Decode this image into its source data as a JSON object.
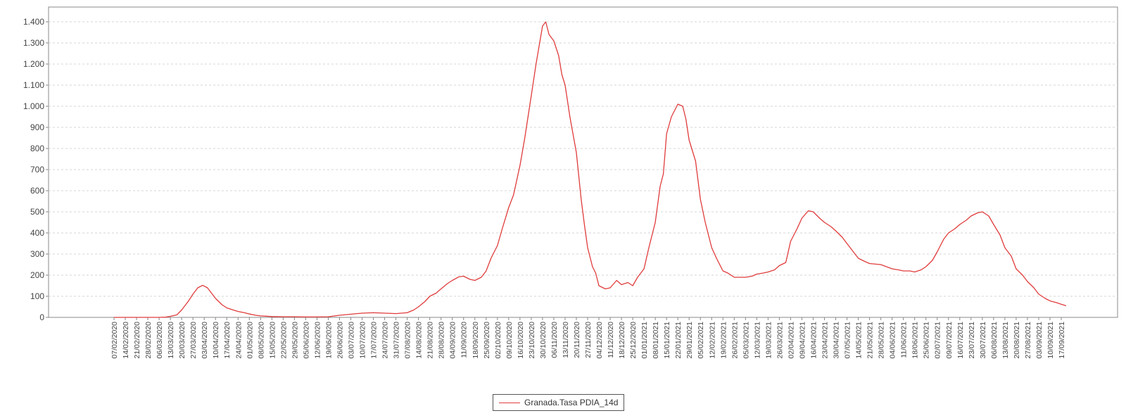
{
  "chart_data": {
    "type": "line",
    "title": "",
    "xlabel": "",
    "ylabel": "",
    "ylim": [
      0,
      1470
    ],
    "y_ticks": [
      0,
      100,
      200,
      300,
      400,
      500,
      600,
      700,
      800,
      900,
      1000,
      1100,
      1200,
      1300,
      1400
    ],
    "y_tick_labels": [
      "0",
      "100",
      "200",
      "300",
      "400",
      "500",
      "600",
      "700",
      "800",
      "900",
      "1.000",
      "1.100",
      "1.200",
      "1.300",
      "1.400"
    ],
    "x_tick_labels": [
      "07/02/2020",
      "14/02/2020",
      "21/02/2020",
      "28/02/2020",
      "06/03/2020",
      "13/03/2020",
      "20/03/2020",
      "27/03/2020",
      "03/04/2020",
      "10/04/2020",
      "17/04/2020",
      "24/04/2020",
      "01/05/2020",
      "08/05/2020",
      "15/05/2020",
      "22/05/2020",
      "29/05/2020",
      "05/06/2020",
      "12/06/2020",
      "19/06/2020",
      "26/06/2020",
      "03/07/2020",
      "10/07/2020",
      "17/07/2020",
      "24/07/2020",
      "31/07/2020",
      "07/08/2020",
      "14/08/2020",
      "21/08/2020",
      "28/08/2020",
      "04/09/2020",
      "11/09/2020",
      "18/09/2020",
      "25/09/2020",
      "02/10/2020",
      "09/10/2020",
      "16/10/2020",
      "23/10/2020",
      "30/10/2020",
      "06/11/2020",
      "13/11/2020",
      "20/11/2020",
      "27/11/2020",
      "04/12/2020",
      "11/12/2020",
      "18/12/2020",
      "25/12/2020",
      "01/01/2021",
      "08/01/2021",
      "15/01/2021",
      "22/01/2021",
      "29/01/2021",
      "05/02/2021",
      "12/02/2021",
      "19/02/2021",
      "26/02/2021",
      "05/03/2021",
      "12/03/2021",
      "19/03/2021",
      "26/03/2021",
      "02/04/2021",
      "09/04/2021",
      "16/04/2021",
      "23/04/2021",
      "30/04/2021",
      "07/05/2021",
      "14/05/2021",
      "21/05/2021",
      "28/05/2021",
      "04/06/2021",
      "11/06/2021",
      "18/06/2021",
      "25/06/2021",
      "02/07/2021",
      "09/07/2021",
      "16/07/2021",
      "23/07/2021",
      "30/07/2021",
      "06/08/2021",
      "13/08/2021",
      "20/08/2021",
      "27/08/2021",
      "03/09/2021",
      "10/09/2021",
      "17/09/2021"
    ],
    "grid": true,
    "legend_position": "bottom-center",
    "series": [
      {
        "name": "Granada.Tasa PDIA_14d",
        "color": "#e03c3c",
        "points": [
          [
            "07/02/2020",
            0
          ],
          [
            "14/02/2020",
            0
          ],
          [
            "21/02/2020",
            0
          ],
          [
            "28/02/2020",
            0
          ],
          [
            "06/03/2020",
            0
          ],
          [
            "10/03/2020",
            1
          ],
          [
            "13/03/2020",
            5
          ],
          [
            "17/03/2020",
            12
          ],
          [
            "20/03/2020",
            35
          ],
          [
            "24/03/2020",
            75
          ],
          [
            "27/03/2020",
            110
          ],
          [
            "30/03/2020",
            140
          ],
          [
            "02/04/2020",
            152
          ],
          [
            "05/04/2020",
            140
          ],
          [
            "08/04/2020",
            110
          ],
          [
            "10/04/2020",
            90
          ],
          [
            "14/04/2020",
            60
          ],
          [
            "17/04/2020",
            45
          ],
          [
            "21/04/2020",
            35
          ],
          [
            "24/04/2020",
            28
          ],
          [
            "28/04/2020",
            22
          ],
          [
            "01/05/2020",
            16
          ],
          [
            "05/05/2020",
            10
          ],
          [
            "08/05/2020",
            7
          ],
          [
            "15/05/2020",
            4
          ],
          [
            "22/05/2020",
            3
          ],
          [
            "29/05/2020",
            3
          ],
          [
            "05/06/2020",
            2
          ],
          [
            "12/06/2020",
            2
          ],
          [
            "19/06/2020",
            3
          ],
          [
            "26/06/2020",
            10
          ],
          [
            "03/07/2020",
            15
          ],
          [
            "10/07/2020",
            20
          ],
          [
            "17/07/2020",
            22
          ],
          [
            "24/07/2020",
            20
          ],
          [
            "31/07/2020",
            18
          ],
          [
            "07/08/2020",
            22
          ],
          [
            "11/08/2020",
            35
          ],
          [
            "14/08/2020",
            50
          ],
          [
            "18/08/2020",
            75
          ],
          [
            "21/08/2020",
            100
          ],
          [
            "25/08/2020",
            115
          ],
          [
            "28/08/2020",
            135
          ],
          [
            "01/09/2020",
            160
          ],
          [
            "04/09/2020",
            175
          ],
          [
            "08/09/2020",
            192
          ],
          [
            "11/09/2020",
            195
          ],
          [
            "15/09/2020",
            180
          ],
          [
            "18/09/2020",
            175
          ],
          [
            "22/09/2020",
            190
          ],
          [
            "25/09/2020",
            220
          ],
          [
            "28/09/2020",
            280
          ],
          [
            "02/10/2020",
            340
          ],
          [
            "05/10/2020",
            420
          ],
          [
            "09/10/2020",
            520
          ],
          [
            "12/10/2020",
            580
          ],
          [
            "16/10/2020",
            720
          ],
          [
            "19/10/2020",
            850
          ],
          [
            "23/10/2020",
            1050
          ],
          [
            "26/10/2020",
            1200
          ],
          [
            "30/10/2020",
            1380
          ],
          [
            "01/11/2020",
            1400
          ],
          [
            "03/11/2020",
            1340
          ],
          [
            "06/11/2020",
            1310
          ],
          [
            "09/11/2020",
            1240
          ],
          [
            "11/11/2020",
            1150
          ],
          [
            "13/11/2020",
            1100
          ],
          [
            "16/11/2020",
            950
          ],
          [
            "20/11/2020",
            780
          ],
          [
            "23/11/2020",
            560
          ],
          [
            "25/11/2020",
            440
          ],
          [
            "27/11/2020",
            330
          ],
          [
            "30/11/2020",
            240
          ],
          [
            "02/12/2020",
            210
          ],
          [
            "04/12/2020",
            150
          ],
          [
            "08/12/2020",
            135
          ],
          [
            "11/12/2020",
            140
          ],
          [
            "15/12/2020",
            175
          ],
          [
            "18/12/2020",
            155
          ],
          [
            "22/12/2020",
            165
          ],
          [
            "25/12/2020",
            150
          ],
          [
            "28/12/2020",
            190
          ],
          [
            "01/01/2021",
            230
          ],
          [
            "04/01/2021",
            330
          ],
          [
            "08/01/2021",
            450
          ],
          [
            "11/01/2021",
            620
          ],
          [
            "13/01/2021",
            680
          ],
          [
            "15/01/2021",
            870
          ],
          [
            "18/01/2021",
            950
          ],
          [
            "22/01/2021",
            1010
          ],
          [
            "25/01/2021",
            1000
          ],
          [
            "27/01/2021",
            940
          ],
          [
            "29/01/2021",
            840
          ],
          [
            "02/02/2021",
            740
          ],
          [
            "05/02/2021",
            560
          ],
          [
            "08/02/2021",
            450
          ],
          [
            "12/02/2021",
            330
          ],
          [
            "15/02/2021",
            280
          ],
          [
            "19/02/2021",
            220
          ],
          [
            "22/02/2021",
            210
          ],
          [
            "26/02/2021",
            190
          ],
          [
            "05/03/2021",
            190
          ],
          [
            "09/03/2021",
            195
          ],
          [
            "12/03/2021",
            205
          ],
          [
            "16/03/2021",
            210
          ],
          [
            "19/03/2021",
            215
          ],
          [
            "23/03/2021",
            225
          ],
          [
            "26/03/2021",
            245
          ],
          [
            "30/03/2021",
            260
          ],
          [
            "02/04/2021",
            360
          ],
          [
            "06/04/2021",
            420
          ],
          [
            "09/04/2021",
            470
          ],
          [
            "13/04/2021",
            505
          ],
          [
            "16/04/2021",
            500
          ],
          [
            "20/04/2021",
            470
          ],
          [
            "23/04/2021",
            450
          ],
          [
            "27/04/2021",
            430
          ],
          [
            "30/04/2021",
            410
          ],
          [
            "04/05/2021",
            380
          ],
          [
            "07/05/2021",
            350
          ],
          [
            "11/05/2021",
            310
          ],
          [
            "14/05/2021",
            280
          ],
          [
            "18/05/2021",
            265
          ],
          [
            "21/05/2021",
            255
          ],
          [
            "28/05/2021",
            250
          ],
          [
            "04/06/2021",
            230
          ],
          [
            "08/06/2021",
            225
          ],
          [
            "11/06/2021",
            220
          ],
          [
            "15/06/2021",
            220
          ],
          [
            "18/06/2021",
            215
          ],
          [
            "22/06/2021",
            225
          ],
          [
            "25/06/2021",
            240
          ],
          [
            "29/06/2021",
            270
          ],
          [
            "02/07/2021",
            310
          ],
          [
            "06/07/2021",
            370
          ],
          [
            "09/07/2021",
            400
          ],
          [
            "13/07/2021",
            420
          ],
          [
            "16/07/2021",
            440
          ],
          [
            "20/07/2021",
            460
          ],
          [
            "23/07/2021",
            480
          ],
          [
            "27/07/2021",
            495
          ],
          [
            "30/07/2021",
            500
          ],
          [
            "03/08/2021",
            480
          ],
          [
            "06/08/2021",
            440
          ],
          [
            "10/08/2021",
            390
          ],
          [
            "13/08/2021",
            330
          ],
          [
            "17/08/2021",
            290
          ],
          [
            "20/08/2021",
            230
          ],
          [
            "24/08/2021",
            200
          ],
          [
            "27/08/2021",
            170
          ],
          [
            "31/08/2021",
            140
          ],
          [
            "03/09/2021",
            110
          ],
          [
            "07/09/2021",
            90
          ],
          [
            "10/09/2021",
            78
          ],
          [
            "14/09/2021",
            70
          ],
          [
            "17/09/2021",
            62
          ],
          [
            "20/09/2021",
            55
          ]
        ]
      }
    ]
  }
}
